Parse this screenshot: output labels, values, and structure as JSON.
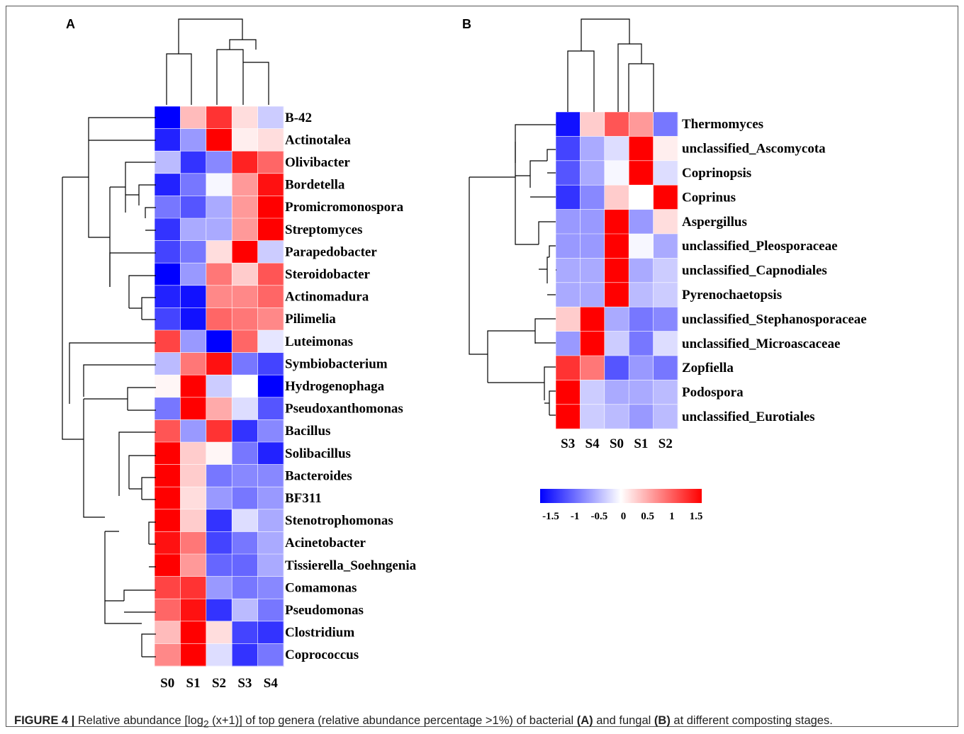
{
  "chart_data": [
    {
      "type": "heatmap",
      "panel": "A",
      "columns": [
        "S0",
        "S1",
        "S2",
        "S3",
        "S4"
      ],
      "rows": [
        "B-42",
        "Actinotalea",
        "Olivibacter",
        "Bordetella",
        "Promicromonospora",
        "Streptomyces",
        "Parapedobacter",
        "Steroidobacter",
        "Actinomadura",
        "Pilimelia",
        "Luteimonas",
        "Symbiobacterium",
        "Hydrogenophaga",
        "Pseudoxanthomonas",
        "Bacillus",
        "Solibacillus",
        "Bacteroides",
        "BF311",
        "Stenotrophomonas",
        "Acinetobacter",
        "Tissierella_Soehngenia",
        "Comamonas",
        "Pseudomonas",
        "Clostridium",
        "Coprococcus"
      ],
      "values": [
        [
          -1.5,
          0.4,
          1.2,
          0.2,
          -0.3
        ],
        [
          -1.3,
          -0.6,
          1.5,
          0.1,
          0.2
        ],
        [
          -0.4,
          -1.2,
          -0.7,
          1.3,
          0.9
        ],
        [
          -1.3,
          -0.8,
          -0.05,
          0.6,
          1.4
        ],
        [
          -0.8,
          -1.0,
          -0.5,
          0.6,
          1.5
        ],
        [
          -1.2,
          -0.5,
          -0.5,
          0.6,
          1.5
        ],
        [
          -1.1,
          -0.8,
          0.2,
          1.6,
          -0.3
        ],
        [
          -1.6,
          -0.6,
          0.8,
          0.3,
          1.0
        ],
        [
          -1.3,
          -1.4,
          0.7,
          0.7,
          0.9
        ],
        [
          -1.1,
          -1.4,
          0.9,
          0.8,
          0.7
        ],
        [
          1.1,
          -0.6,
          -1.5,
          0.9,
          -0.15
        ],
        [
          -0.4,
          0.8,
          1.4,
          -0.8,
          -1.1
        ],
        [
          0.05,
          1.6,
          -0.3,
          0.0,
          -1.5
        ],
        [
          -0.8,
          1.5,
          0.5,
          -0.2,
          -1.0
        ],
        [
          1.0,
          -0.6,
          1.2,
          -1.2,
          -0.7
        ],
        [
          1.5,
          0.3,
          0.05,
          -0.8,
          -1.3
        ],
        [
          1.6,
          0.3,
          -0.8,
          -0.7,
          -0.7
        ],
        [
          1.6,
          0.2,
          -0.6,
          -0.8,
          -0.6
        ],
        [
          1.5,
          0.3,
          -1.2,
          -0.2,
          -0.5
        ],
        [
          1.4,
          0.8,
          -1.1,
          -0.8,
          -0.5
        ],
        [
          1.5,
          0.6,
          -0.9,
          -0.9,
          -0.5
        ],
        [
          1.1,
          1.2,
          -0.6,
          -0.8,
          -0.7
        ],
        [
          0.9,
          1.4,
          -1.2,
          -0.4,
          -0.8
        ],
        [
          0.4,
          1.6,
          0.2,
          -1.1,
          -1.2
        ],
        [
          0.7,
          1.5,
          -0.2,
          -1.2,
          -0.8
        ]
      ],
      "color_scale": {
        "min": -1.5,
        "max": 1.5,
        "low": "#0000ff",
        "mid": "#ffffff",
        "high": "#ff0000"
      }
    },
    {
      "type": "heatmap",
      "panel": "B",
      "columns": [
        "S3",
        "S4",
        "S0",
        "S1",
        "S2"
      ],
      "rows": [
        "Thermomyces",
        "unclassified_Ascomycota",
        "Coprinopsis",
        "Coprinus",
        "Aspergillus",
        "unclassified_Pleosporaceae",
        "unclassified_Capnodiales",
        "Pyrenochaetopsis",
        "unclassified_Stephanosporaceae",
        "unclassified_Microascaceae",
        "Zopfiella",
        "Podospora",
        "unclassified_Eurotiales"
      ],
      "values": [
        [
          -1.4,
          0.3,
          1.0,
          0.6,
          -0.8
        ],
        [
          -1.1,
          -0.5,
          -0.2,
          1.5,
          0.1
        ],
        [
          -1.0,
          -0.5,
          -0.05,
          1.6,
          -0.2
        ],
        [
          -1.2,
          -0.7,
          0.3,
          0.0,
          1.5
        ],
        [
          -0.6,
          -0.6,
          1.6,
          -0.6,
          0.2
        ],
        [
          -0.6,
          -0.6,
          1.7,
          -0.05,
          -0.5
        ],
        [
          -0.5,
          -0.5,
          1.7,
          -0.5,
          -0.3
        ],
        [
          -0.5,
          -0.5,
          1.6,
          -0.4,
          -0.3
        ],
        [
          0.3,
          1.6,
          -0.5,
          -0.8,
          -0.7
        ],
        [
          -0.6,
          1.6,
          -0.3,
          -0.8,
          -0.2
        ],
        [
          1.2,
          0.8,
          -1.0,
          -0.6,
          -0.8
        ],
        [
          1.6,
          -0.3,
          -0.5,
          -0.5,
          -0.4
        ],
        [
          1.6,
          -0.3,
          -0.4,
          -0.6,
          -0.4
        ]
      ],
      "color_scale": {
        "min": -1.5,
        "max": 1.5,
        "low": "#0000ff",
        "mid": "#ffffff",
        "high": "#ff0000"
      }
    }
  ],
  "panels": {
    "a_letter": "A",
    "b_letter": "B"
  },
  "legend": {
    "ticks": [
      "-1.5",
      "-1",
      "-0.5",
      "0",
      "0.5",
      "1",
      "1.5"
    ]
  },
  "caption": {
    "label": "FIGURE 4 |",
    "text_1": " Relative abundance [log",
    "subscript": "2",
    "text_2": " (x+1)] of top genera (relative abundance percentage >1%) of bacterial ",
    "bold_a": "(A)",
    "text_3": " and fungal ",
    "bold_b": "(B)",
    "text_4": " at different composting stages."
  }
}
